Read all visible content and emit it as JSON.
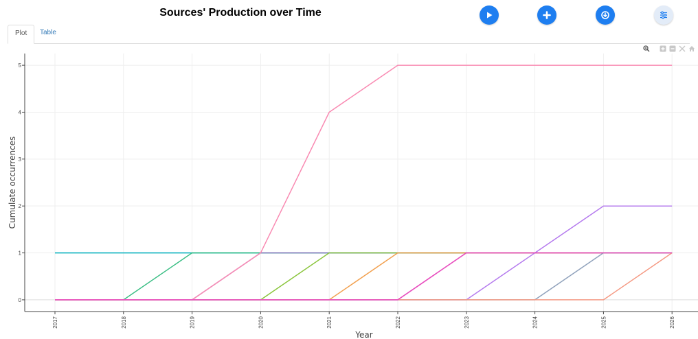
{
  "header": {
    "title": "Sources' Production over Time"
  },
  "toolbar": {
    "icons": [
      "play-icon",
      "plus-icon",
      "download-icon",
      "sliders-icon"
    ],
    "accent_color": "#1e7ef0"
  },
  "tabs": [
    {
      "label": "Plot",
      "active": true
    },
    {
      "label": "Table",
      "active": false
    }
  ],
  "modebar": {
    "icons": [
      "zoom-icon",
      "zoom-in-icon",
      "zoom-out-icon",
      "autoscale-icon",
      "home-icon"
    ]
  },
  "chart_data": {
    "type": "line",
    "title": "",
    "xlabel": "Year",
    "ylabel": "Cumulate occurrences",
    "x": [
      "2017",
      "2018",
      "2019",
      "2020",
      "2021",
      "2022",
      "2023",
      "2024",
      "2025",
      "2026"
    ],
    "xtick_labels": [
      "2017",
      "2018",
      "2019",
      "2020",
      "2021",
      "2022",
      "2023",
      "2024",
      "2025",
      "2026"
    ],
    "ytick_labels": [
      "0",
      "1",
      "2",
      "3",
      "4",
      "5"
    ],
    "ylim": [
      -0.25,
      5.25
    ],
    "grid": true,
    "series": [
      {
        "values": [
          1,
          1,
          1,
          1,
          1,
          1,
          1,
          1,
          1,
          1
        ],
        "color": "#2ec4a0"
      },
      {
        "values": [
          1,
          1,
          1,
          1,
          1,
          1,
          1,
          1,
          1,
          1
        ],
        "color": "#19b5c9"
      },
      {
        "values": [
          0,
          0,
          1,
          1,
          1,
          1,
          1,
          1,
          1,
          1
        ],
        "color": "#3dbf86"
      },
      {
        "values": [
          0,
          0,
          0,
          1,
          1,
          1,
          1,
          1,
          1,
          1
        ],
        "color": "#a27bc9"
      },
      {
        "values": [
          0,
          0,
          0,
          0,
          1,
          1,
          1,
          1,
          1,
          1
        ],
        "color": "#8cc63f"
      },
      {
        "values": [
          0,
          0,
          0,
          0,
          0,
          1,
          1,
          1,
          1,
          1
        ],
        "color": "#f2a04e"
      },
      {
        "values": [
          0,
          0,
          0,
          0,
          0,
          0,
          1,
          1,
          1,
          1
        ],
        "color": "#ec5fb7"
      },
      {
        "values": [
          0,
          0,
          0,
          0,
          0,
          0,
          0,
          1,
          2,
          2
        ],
        "color": "#b57bee"
      },
      {
        "values": [
          0,
          0,
          0,
          0,
          0,
          0,
          0,
          0,
          1,
          1
        ],
        "color": "#8fa1bb"
      },
      {
        "values": [
          0,
          0,
          0,
          0,
          0,
          0,
          0,
          0,
          0,
          1
        ],
        "color": "#f59a84"
      },
      {
        "values": [
          0,
          0,
          0,
          1,
          4,
          5,
          5,
          5,
          5,
          5
        ],
        "color": "#f98ab2"
      },
      {
        "values": [
          0,
          0,
          0,
          0,
          0,
          0,
          1,
          1,
          1,
          1
        ],
        "color": "#e84fc0"
      }
    ]
  }
}
